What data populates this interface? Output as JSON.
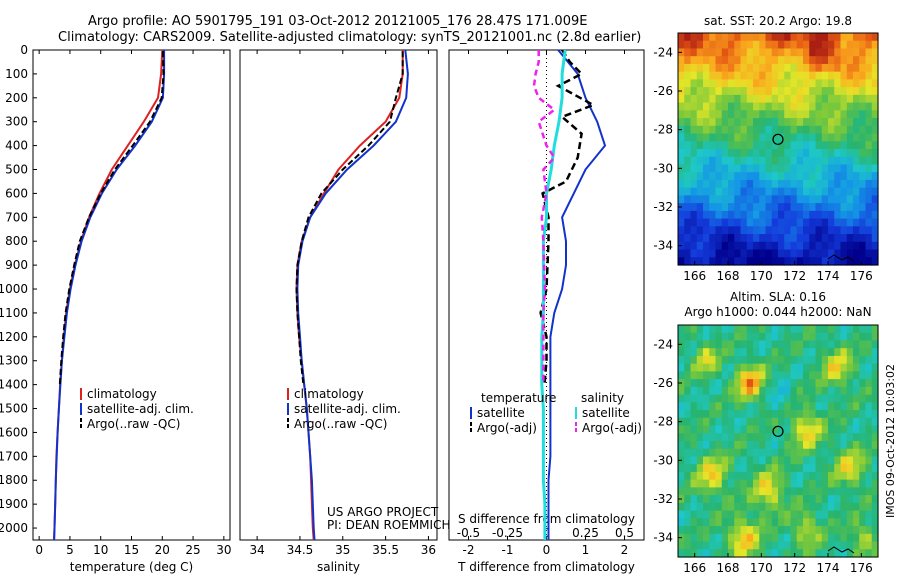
{
  "header": {
    "line1": "Argo profile: AO 5901795_191 03-Oct-2012 20121005_176 28.47S 171.009E",
    "line2": "Climatology: CARS2009. Satellite-adjusted climatology: synTS_20121001.nc (2.8d earlier)"
  },
  "vertical_label": "IMOS 09-Oct-2012 10:03:02",
  "project": {
    "line1": "US ARGO PROJECT",
    "line2": "PI: DEAN ROEMMICH"
  },
  "colors": {
    "climatology": "#dd2222",
    "satellite": "#1133cc",
    "argo": "#000000",
    "salinity_sat": "#22dddd",
    "salinity_argo": "#ee22ee"
  },
  "chart_data": [
    {
      "id": "temperature",
      "type": "line",
      "xlabel": "temperature (deg C)",
      "ylabel": "",
      "xlim": [
        -1,
        31
      ],
      "ylim": [
        2050,
        0
      ],
      "xticks": [
        0,
        5,
        10,
        15,
        20,
        25,
        30
      ],
      "yticks": [
        0,
        100,
        200,
        300,
        400,
        500,
        600,
        700,
        800,
        900,
        1000,
        1100,
        1200,
        1300,
        1400,
        1500,
        1600,
        1700,
        1800,
        1900,
        2000
      ],
      "legend": [
        "climatology",
        "satellite-adj. clim.",
        "Argo(..raw -QC)"
      ],
      "series": [
        {
          "name": "climatology",
          "points": [
            [
              20,
              0
            ],
            [
              19.8,
              100
            ],
            [
              19.3,
              200
            ],
            [
              17,
              300
            ],
            [
              14.4,
              400
            ],
            [
              11.8,
              500
            ],
            [
              9.8,
              600
            ],
            [
              8.1,
              700
            ],
            [
              6.8,
              800
            ],
            [
              5.8,
              900
            ],
            [
              5.0,
              1000
            ],
            [
              4.4,
              1100
            ],
            [
              4.0,
              1200
            ],
            [
              3.7,
              1300
            ],
            [
              3.4,
              1400
            ],
            [
              3.2,
              1500
            ],
            [
              3.0,
              1600
            ],
            [
              2.8,
              1700
            ],
            [
              2.7,
              1800
            ],
            [
              2.6,
              1900
            ],
            [
              2.5,
              2000
            ],
            [
              2.4,
              2050
            ]
          ]
        },
        {
          "name": "satellite-adj. clim.",
          "points": [
            [
              20.3,
              0
            ],
            [
              20.3,
              100
            ],
            [
              20.1,
              200
            ],
            [
              18.3,
              300
            ],
            [
              15.6,
              400
            ],
            [
              12.6,
              500
            ],
            [
              10.2,
              600
            ],
            [
              8.3,
              700
            ],
            [
              6.9,
              800
            ],
            [
              5.9,
              900
            ],
            [
              5.1,
              1000
            ],
            [
              4.5,
              1100
            ],
            [
              4.1,
              1200
            ],
            [
              3.7,
              1300
            ],
            [
              3.45,
              1400
            ],
            [
              3.2,
              1500
            ],
            [
              3.0,
              1600
            ],
            [
              2.85,
              1700
            ],
            [
              2.7,
              1800
            ],
            [
              2.6,
              1900
            ],
            [
              2.5,
              2000
            ],
            [
              2.45,
              2050
            ]
          ]
        },
        {
          "name": "Argo(..raw -QC)",
          "points": [
            [
              20.1,
              5
            ],
            [
              20.2,
              100
            ],
            [
              19.9,
              200
            ],
            [
              18.0,
              300
            ],
            [
              15.2,
              400
            ],
            [
              12.3,
              500
            ],
            [
              10.0,
              600
            ],
            [
              8.1,
              700
            ],
            [
              6.6,
              800
            ],
            [
              5.7,
              900
            ],
            [
              4.9,
              1000
            ],
            [
              4.3,
              1100
            ],
            [
              3.9,
              1200
            ],
            [
              3.6,
              1300
            ],
            [
              3.35,
              1400
            ]
          ]
        }
      ]
    },
    {
      "id": "salinity",
      "type": "line",
      "xlabel": "salinity",
      "ylabel": "",
      "xlim": [
        33.8,
        36.1
      ],
      "ylim": [
        2050,
        0
      ],
      "xticks": [
        34,
        34.5,
        35,
        35.5,
        36
      ],
      "legend": [
        "climatology",
        "satellite-adj. clim.",
        "Argo(..raw -QC)"
      ],
      "series": [
        {
          "name": "climatology",
          "points": [
            [
              35.7,
              0
            ],
            [
              35.7,
              100
            ],
            [
              35.66,
              200
            ],
            [
              35.5,
              300
            ],
            [
              35.2,
              400
            ],
            [
              34.95,
              500
            ],
            [
              34.78,
              600
            ],
            [
              34.62,
              700
            ],
            [
              34.52,
              800
            ],
            [
              34.47,
              900
            ],
            [
              34.46,
              1000
            ],
            [
              34.47,
              1100
            ],
            [
              34.49,
              1200
            ],
            [
              34.52,
              1300
            ],
            [
              34.55,
              1400
            ],
            [
              34.58,
              1500
            ],
            [
              34.6,
              1600
            ],
            [
              34.62,
              1700
            ],
            [
              34.63,
              1800
            ],
            [
              34.64,
              1900
            ],
            [
              34.65,
              2000
            ],
            [
              34.66,
              2050
            ]
          ]
        },
        {
          "name": "satellite-adj. clim.",
          "points": [
            [
              35.73,
              0
            ],
            [
              35.76,
              100
            ],
            [
              35.74,
              200
            ],
            [
              35.62,
              300
            ],
            [
              35.36,
              400
            ],
            [
              35.05,
              500
            ],
            [
              34.8,
              600
            ],
            [
              34.62,
              700
            ],
            [
              34.53,
              800
            ],
            [
              34.48,
              900
            ],
            [
              34.47,
              1000
            ],
            [
              34.48,
              1100
            ],
            [
              34.5,
              1200
            ],
            [
              34.52,
              1300
            ],
            [
              34.55,
              1400
            ],
            [
              34.58,
              1500
            ],
            [
              34.6,
              1600
            ],
            [
              34.62,
              1700
            ],
            [
              34.64,
              1800
            ],
            [
              34.65,
              1900
            ],
            [
              34.66,
              2000
            ],
            [
              34.67,
              2050
            ]
          ]
        },
        {
          "name": "Argo(..raw -QC)",
          "points": [
            [
              35.7,
              5
            ],
            [
              35.7,
              100
            ],
            [
              35.62,
              200
            ],
            [
              35.55,
              300
            ],
            [
              35.3,
              400
            ],
            [
              35.0,
              500
            ],
            [
              34.75,
              600
            ],
            [
              34.6,
              700
            ],
            [
              34.52,
              800
            ],
            [
              34.47,
              900
            ],
            [
              34.46,
              1000
            ],
            [
              34.47,
              1100
            ],
            [
              34.49,
              1200
            ],
            [
              34.51,
              1300
            ],
            [
              34.54,
              1400
            ]
          ]
        }
      ]
    },
    {
      "id": "differences",
      "type": "line",
      "xlabel": "T difference from climatology",
      "xlabel2": "S difference from climatology",
      "xlim": [
        -2.5,
        2.5
      ],
      "ylim": [
        2050,
        0
      ],
      "xticks": [
        -2,
        -1,
        0,
        1,
        2
      ],
      "xticks_s": [
        -0.5,
        -0.25,
        0,
        0.25,
        0.5
      ],
      "legend_headers": [
        "temperature",
        "salinity"
      ],
      "legend": [
        "satellite",
        "Argo(-adj)",
        "satellite",
        "Argo(-adj)"
      ],
      "series": [
        {
          "name": "satellite",
          "group": "temperature",
          "points": [
            [
              0.3,
              0
            ],
            [
              0.8,
              100
            ],
            [
              1.0,
              200
            ],
            [
              1.3,
              300
            ],
            [
              1.5,
              400
            ],
            [
              1.0,
              500
            ],
            [
              0.7,
              600
            ],
            [
              0.4,
              700
            ],
            [
              0.5,
              800
            ],
            [
              0.5,
              900
            ],
            [
              0.4,
              1000
            ],
            [
              0.2,
              1100
            ],
            [
              0.1,
              1200
            ],
            [
              0.1,
              1300
            ],
            [
              0.1,
              1400
            ],
            [
              0.1,
              1500
            ],
            [
              0.1,
              1600
            ],
            [
              0.1,
              1700
            ],
            [
              0.05,
              1800
            ],
            [
              0.05,
              1900
            ],
            [
              0.05,
              2000
            ],
            [
              0.05,
              2050
            ]
          ]
        },
        {
          "name": "Argo(-adj)",
          "group": "temperature",
          "points": [
            [
              0.4,
              0
            ],
            [
              0.6,
              50
            ],
            [
              0.9,
              100
            ],
            [
              0.3,
              150
            ],
            [
              1.2,
              230
            ],
            [
              0.4,
              280
            ],
            [
              0.9,
              350
            ],
            [
              0.8,
              450
            ],
            [
              0.5,
              550
            ],
            [
              -0.1,
              600
            ],
            [
              0.05,
              700
            ],
            [
              0.05,
              800
            ],
            [
              0.0,
              1000
            ],
            [
              -0.15,
              1100
            ],
            [
              0.0,
              1200
            ],
            [
              0.0,
              1300
            ],
            [
              -0.05,
              1400
            ]
          ]
        },
        {
          "name": "satellite",
          "group": "salinity",
          "points": [
            [
              0.12,
              0
            ],
            [
              0.1,
              100
            ],
            [
              0.1,
              200
            ],
            [
              0.08,
              300
            ],
            [
              0.05,
              400
            ],
            [
              0.03,
              500
            ],
            [
              0.0,
              600
            ],
            [
              0.0,
              700
            ],
            [
              -0.02,
              800
            ],
            [
              -0.02,
              900
            ],
            [
              -0.02,
              1000
            ],
            [
              -0.02,
              1100
            ],
            [
              -0.03,
              1200
            ],
            [
              -0.03,
              1300
            ],
            [
              -0.03,
              1400
            ],
            [
              -0.02,
              1500
            ],
            [
              -0.02,
              1600
            ],
            [
              -0.02,
              1700
            ],
            [
              -0.02,
              1800
            ],
            [
              -0.01,
              1900
            ],
            [
              -0.01,
              2000
            ],
            [
              -0.01,
              2050
            ]
          ]
        },
        {
          "name": "Argo(-adj)",
          "group": "salinity",
          "points": [
            [
              -0.05,
              0
            ],
            [
              -0.05,
              50
            ],
            [
              -0.07,
              100
            ],
            [
              -0.08,
              150
            ],
            [
              -0.05,
              200
            ],
            [
              0.05,
              250
            ],
            [
              -0.05,
              300
            ],
            [
              0.0,
              400
            ],
            [
              0.05,
              450
            ],
            [
              -0.02,
              500
            ],
            [
              0.0,
              600
            ],
            [
              -0.03,
              700
            ],
            [
              -0.02,
              800
            ],
            [
              -0.01,
              1000
            ],
            [
              -0.02,
              1100
            ],
            [
              -0.02,
              1200
            ],
            [
              -0.02,
              1300
            ],
            [
              -0.02,
              1400
            ]
          ]
        }
      ]
    },
    {
      "id": "sst_map",
      "type": "heatmap",
      "title": "sat. SST: 20.2  Argo: 19.8",
      "xlim": [
        165,
        177
      ],
      "ylim": [
        -35,
        -23
      ],
      "xticks": [
        166,
        168,
        170,
        172,
        174,
        176
      ],
      "yticks": [
        -24,
        -26,
        -28,
        -30,
        -32,
        -34
      ],
      "marker": {
        "lon": 171.0,
        "lat": -28.5
      }
    },
    {
      "id": "sla_map",
      "type": "heatmap",
      "title_line1": "Altim. SLA: 0.16",
      "title_line2": "Argo h1000: 0.044  h2000: NaN",
      "xlim": [
        165,
        177
      ],
      "ylim": [
        -35,
        -23
      ],
      "xticks": [
        166,
        168,
        170,
        172,
        174,
        176
      ],
      "yticks": [
        -24,
        -26,
        -28,
        -30,
        -32,
        -34
      ],
      "marker": {
        "lon": 171.0,
        "lat": -28.5
      }
    }
  ]
}
